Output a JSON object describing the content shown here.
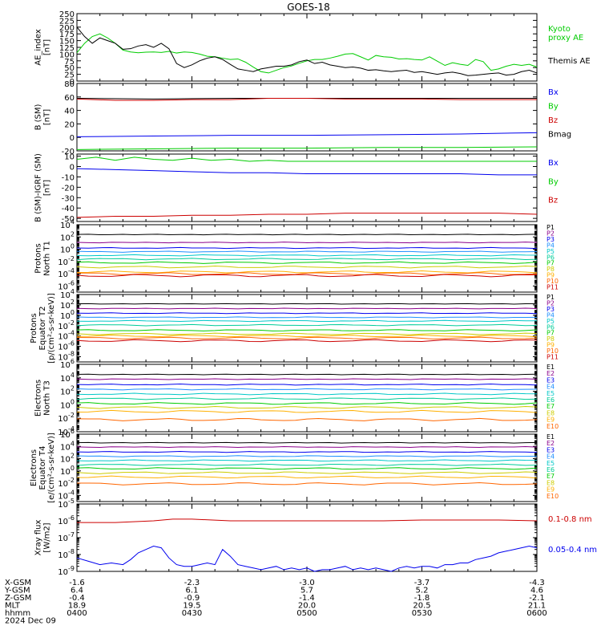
{
  "title": "GOES-18",
  "colors": {
    "black": "#000000",
    "green": "#00cc00",
    "blue": "#0000ee",
    "red": "#cc0000",
    "p_colors": [
      "#000000",
      "#8b008b",
      "#0000ee",
      "#1e90ff",
      "#00c8c8",
      "#00cc99",
      "#00cc00",
      "#cccc00",
      "#ffb000",
      "#ff6600",
      "#cc0000"
    ]
  },
  "chart_data": [
    {
      "id": "ae",
      "type": "line",
      "ylabel": [
        "AE_index",
        "[nT]"
      ],
      "ylim": [
        0,
        250
      ],
      "yticks": [
        "0",
        "25",
        "50",
        "75",
        "100",
        "125",
        "150",
        "175",
        "200",
        "225",
        "250"
      ],
      "legend": [
        {
          "name": "Kyoto\nproxy AE",
          "color": "green"
        },
        {
          "name": "Themis AE",
          "color": "black"
        }
      ],
      "series": [
        {
          "name": "Kyoto proxy AE",
          "color": "green",
          "x": [
            0,
            2,
            4,
            6,
            8,
            10,
            12,
            14,
            16,
            18,
            20,
            22,
            24,
            26,
            28,
            30,
            32,
            34,
            36,
            38,
            40,
            42,
            44,
            46,
            48,
            50,
            52,
            54,
            56,
            58,
            60,
            62,
            64,
            66,
            68,
            70,
            72,
            74,
            76,
            78,
            80,
            82,
            84,
            86,
            88,
            90,
            92,
            94,
            96,
            98,
            100,
            102,
            104,
            106,
            108,
            110,
            112,
            114,
            116,
            118,
            120
          ],
          "y": [
            105,
            140,
            165,
            175,
            160,
            140,
            115,
            108,
            105,
            107,
            108,
            106,
            110,
            104,
            108,
            106,
            100,
            92,
            90,
            85,
            80,
            82,
            70,
            52,
            35,
            30,
            40,
            50,
            56,
            66,
            75,
            80,
            80,
            85,
            92,
            100,
            102,
            90,
            78,
            95,
            90,
            88,
            82,
            83,
            80,
            78,
            90,
            74,
            58,
            68,
            62,
            58,
            80,
            72,
            40,
            45,
            55,
            62,
            58,
            62,
            52
          ]
        },
        {
          "name": "Themis AE",
          "color": "black",
          "x": [
            0,
            2,
            4,
            6,
            8,
            10,
            12,
            14,
            16,
            18,
            20,
            22,
            24,
            26,
            28,
            30,
            32,
            34,
            36,
            38,
            40,
            42,
            44,
            46,
            48,
            50,
            52,
            54,
            56,
            58,
            60,
            62,
            64,
            66,
            68,
            70,
            72,
            74,
            76,
            78,
            80,
            82,
            84,
            86,
            88,
            90,
            92,
            94,
            96,
            98,
            100,
            102,
            104,
            106,
            108,
            110,
            112,
            114,
            116,
            118,
            120
          ],
          "y": [
            200,
            165,
            140,
            160,
            150,
            140,
            118,
            120,
            130,
            135,
            125,
            140,
            120,
            65,
            50,
            60,
            75,
            85,
            90,
            80,
            62,
            45,
            40,
            35,
            45,
            50,
            55,
            55,
            60,
            72,
            78,
            65,
            70,
            60,
            55,
            50,
            52,
            48,
            40,
            42,
            38,
            35,
            38,
            40,
            32,
            35,
            30,
            25,
            30,
            33,
            28,
            20,
            22,
            25,
            28,
            30,
            22,
            25,
            35,
            40,
            30
          ]
        }
      ]
    },
    {
      "id": "bsm",
      "type": "line",
      "ylabel": [
        "B (SM)",
        "[nT]"
      ],
      "ylim": [
        -20,
        80
      ],
      "yticks": [
        "-20",
        "0",
        "20",
        "40",
        "60",
        "80"
      ],
      "legend": [
        {
          "name": "Bx",
          "color": "blue"
        },
        {
          "name": "By",
          "color": "green"
        },
        {
          "name": "Bz",
          "color": "red"
        },
        {
          "name": "Bmag",
          "color": "black"
        }
      ],
      "series": [
        {
          "name": "Bmag",
          "color": "black",
          "x": [
            0,
            20,
            40,
            60,
            80,
            100,
            120
          ],
          "y": [
            58,
            57,
            58,
            58,
            58,
            58,
            58
          ]
        },
        {
          "name": "Bz",
          "color": "red",
          "x": [
            0,
            10,
            20,
            30,
            40,
            50,
            60,
            70,
            80,
            90,
            100,
            110,
            120
          ],
          "y": [
            57,
            55,
            55,
            56,
            56,
            58,
            58,
            57,
            57,
            57,
            56,
            56,
            56
          ]
        },
        {
          "name": "Bx",
          "color": "blue",
          "x": [
            0,
            20,
            40,
            60,
            80,
            100,
            120
          ],
          "y": [
            1,
            2,
            3,
            3,
            4,
            5,
            7
          ]
        },
        {
          "name": "By",
          "color": "green",
          "x": [
            0,
            20,
            40,
            60,
            80,
            100,
            120
          ],
          "y": [
            -18,
            -17,
            -16,
            -16,
            -15,
            -15,
            -14
          ]
        }
      ]
    },
    {
      "id": "bigrf",
      "type": "line",
      "ylabel": [
        "B (SM)-IGRF (SM)",
        "[nT]"
      ],
      "ylim": [
        -53,
        12
      ],
      "yticks": [
        "-50",
        "-40",
        "-30",
        "-20",
        "-10",
        "0",
        "10"
      ],
      "legend": [
        {
          "name": "Bx",
          "color": "blue"
        },
        {
          "name": "By",
          "color": "green"
        },
        {
          "name": "Bz",
          "color": "red"
        }
      ],
      "series": [
        {
          "name": "By",
          "color": "green",
          "x": [
            0,
            5,
            10,
            15,
            20,
            25,
            30,
            35,
            40,
            45,
            50,
            55,
            60,
            70,
            80,
            90,
            100,
            110,
            120
          ],
          "y": [
            7,
            9,
            6,
            9,
            7,
            6,
            8,
            6,
            7,
            5,
            6,
            5,
            5,
            5,
            5,
            5,
            5,
            5,
            5
          ]
        },
        {
          "name": "Bx",
          "color": "blue",
          "x": [
            0,
            10,
            20,
            30,
            40,
            50,
            60,
            70,
            80,
            90,
            100,
            110,
            120
          ],
          "y": [
            -2,
            -3,
            -4,
            -5,
            -6,
            -6,
            -7,
            -7,
            -7,
            -7,
            -7,
            -8,
            -8
          ]
        },
        {
          "name": "Bz",
          "color": "red",
          "x": [
            0,
            10,
            20,
            30,
            40,
            50,
            60,
            70,
            80,
            90,
            100,
            110,
            120
          ],
          "y": [
            -49,
            -48,
            -48,
            -47,
            -47,
            -46,
            -46,
            -45,
            -45,
            -45,
            -45,
            -45,
            -46
          ]
        }
      ]
    },
    {
      "id": "pn",
      "type": "line",
      "log": true,
      "ylabel": [
        "Protons",
        "North T1"
      ],
      "ylim": [
        -7,
        4
      ],
      "yticks": [
        "10^-6",
        "10^-4",
        "10^-2",
        "10^0",
        "10^2",
        "10^4"
      ],
      "legend_labels": [
        "P1",
        "P2",
        "P3",
        "P4",
        "P5",
        "P6",
        "P7",
        "P8",
        "P9",
        "P10",
        "P11"
      ],
      "levels": [
        2.4,
        1.1,
        0.2,
        -0.4,
        -1.0,
        -1.6,
        -2.2,
        -2.9,
        -3.7,
        -4.0,
        -4.3
      ]
    },
    {
      "id": "pe",
      "type": "line",
      "log": true,
      "ylabel": [
        "Protons",
        "Equator T2",
        "[p/(cm²-s-sr-keV)]"
      ],
      "ylim": [
        -9,
        4
      ],
      "yticks": [
        "10^-8",
        "10^-6",
        "10^-4",
        "10^-2",
        "10^0",
        "10^2",
        "10^4"
      ],
      "legend_labels": [
        "P1",
        "P2",
        "P3",
        "P4",
        "P5",
        "P6",
        "P7",
        "P8",
        "P9",
        "P10",
        "P11"
      ],
      "levels": [
        2.2,
        1.3,
        0.4,
        -0.4,
        -1.1,
        -1.9,
        -2.9,
        -3.6,
        -4.0,
        -4.4,
        -4.9
      ]
    },
    {
      "id": "en",
      "type": "line",
      "log": true,
      "ylabel": [
        "Electrons",
        "North T3"
      ],
      "ylim": [
        -4,
        6
      ],
      "yticks": [
        "10^-4",
        "10^-2",
        "10^0",
        "10^2",
        "10^4",
        "10^6"
      ],
      "legend_labels": [
        "E1",
        "E2",
        "E3",
        "E4",
        "E5",
        "E6",
        "E7",
        "E8",
        "E9",
        "E10"
      ],
      "levels": [
        4.5,
        3.8,
        3.0,
        2.3,
        1.6,
        0.9,
        0.2,
        -0.4,
        -1.0,
        -2.2
      ]
    },
    {
      "id": "ee",
      "type": "line",
      "log": true,
      "ylabel": [
        "Electrons",
        "Equator T4",
        "[e/(cm²-s-sr-keV)]"
      ],
      "ylim": [
        -5,
        6
      ],
      "yticks": [
        "10^-4",
        "10^-2",
        "10^0",
        "10^2",
        "10^4",
        "10^6"
      ],
      "legend_labels": [
        "E1",
        "E2",
        "E3",
        "E4",
        "E5",
        "E6",
        "E7",
        "E8",
        "E9",
        "E10"
      ],
      "levels": [
        4.6,
        3.9,
        3.1,
        2.4,
        1.7,
        1.0,
        0.4,
        -0.3,
        -1.0,
        -2.1
      ]
    },
    {
      "id": "xray",
      "type": "line",
      "log": true,
      "ylabel": [
        "Xray flux",
        "[W/m2]"
      ],
      "ylim": [
        -9,
        -5
      ],
      "yticks": [
        "10^-9",
        "10^-8",
        "10^-7",
        "10^-6",
        "10^-5"
      ],
      "legend": [
        {
          "name": "0.1-0.8 nm",
          "color": "red"
        },
        {
          "name": "0.05-0.4 nm",
          "color": "blue"
        }
      ],
      "series": [
        {
          "name": "0.1-0.8 nm",
          "color": "red",
          "x": [
            0,
            10,
            20,
            25,
            30,
            40,
            50,
            60,
            70,
            80,
            90,
            100,
            110,
            120
          ],
          "y": [
            -6.1,
            -6.1,
            -6.0,
            -5.9,
            -5.9,
            -6.0,
            -6.0,
            -6.0,
            -6.0,
            -6.0,
            -5.95,
            -5.95,
            -5.95,
            -6.0
          ]
        },
        {
          "name": "0.05-0.4 nm",
          "color": "blue",
          "x": [
            0,
            3,
            6,
            9,
            12,
            14,
            16,
            18,
            20,
            22,
            24,
            26,
            28,
            30,
            32,
            34,
            36,
            38,
            40,
            42,
            44,
            46,
            48,
            50,
            52,
            54,
            56,
            58,
            60,
            62,
            64,
            66,
            68,
            70,
            72,
            74,
            76,
            78,
            80,
            82,
            84,
            86,
            88,
            90,
            92,
            94,
            96,
            98,
            100,
            102,
            104,
            106,
            108,
            110,
            112,
            114,
            116,
            118,
            120
          ],
          "y": [
            -8.2,
            -8.4,
            -8.6,
            -8.5,
            -8.6,
            -8.3,
            -7.9,
            -7.7,
            -7.5,
            -7.6,
            -8.2,
            -8.6,
            -8.7,
            -8.7,
            -8.6,
            -8.5,
            -8.6,
            -7.7,
            -8.1,
            -8.6,
            -8.7,
            -8.8,
            -8.9,
            -8.8,
            -8.7,
            -8.9,
            -8.8,
            -8.9,
            -8.8,
            -9.0,
            -8.9,
            -8.9,
            -8.8,
            -8.7,
            -8.9,
            -8.8,
            -8.9,
            -8.8,
            -8.9,
            -9.0,
            -8.8,
            -8.7,
            -8.8,
            -8.7,
            -8.7,
            -8.8,
            -8.6,
            -8.6,
            -8.5,
            -8.5,
            -8.3,
            -8.2,
            -8.1,
            -7.9,
            -7.8,
            -7.7,
            -7.6,
            -7.5,
            -7.6
          ]
        }
      ]
    }
  ],
  "x_axis": {
    "rows": [
      {
        "label": "X-GSM",
        "values": [
          "-1.6",
          "-2.3",
          "-3.0",
          "-3.7",
          "-4.3"
        ]
      },
      {
        "label": "Y-GSM",
        "values": [
          "6.4",
          "6.1",
          "5.7",
          "5.2",
          "4.6"
        ]
      },
      {
        "label": "Z-GSM",
        "values": [
          "-0.4",
          "-0.9",
          "-1.4",
          "-1.8",
          "-2.1"
        ]
      },
      {
        "label": "MLT",
        "values": [
          "18.9",
          "19.5",
          "20.0",
          "20.5",
          "21.1"
        ]
      },
      {
        "label": "hhmm",
        "values": [
          "0400",
          "0430",
          "0500",
          "0530",
          "0600"
        ]
      }
    ],
    "date": "2024 Dec 09",
    "xlim": [
      0,
      120
    ]
  }
}
